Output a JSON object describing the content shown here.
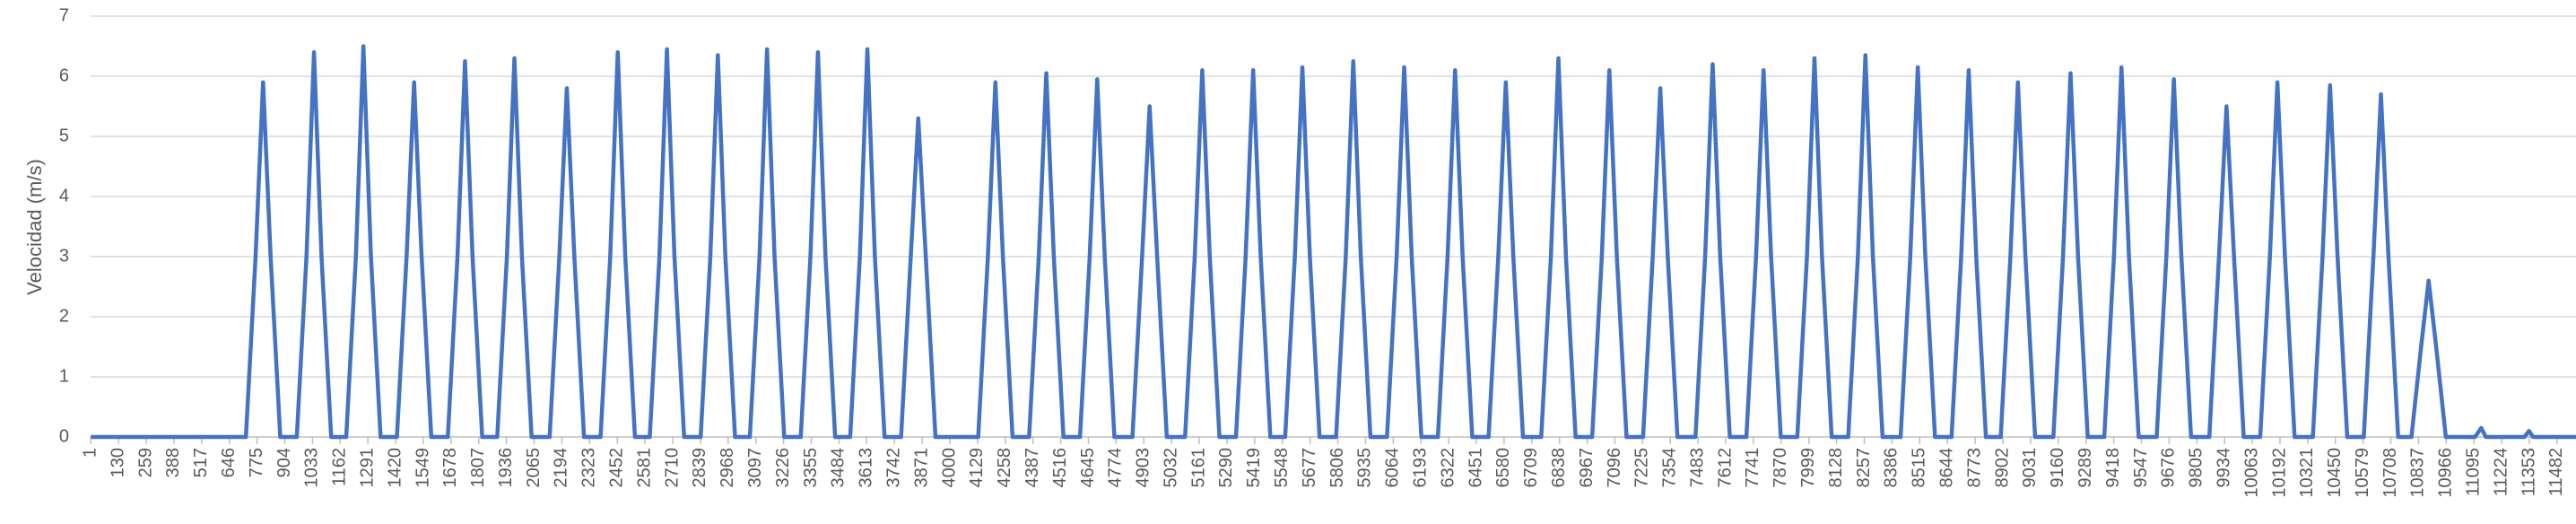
{
  "chart_data": {
    "type": "line",
    "y_label": "Velocidad (m/s)",
    "xlim": [
      0,
      11570
    ],
    "ylim": [
      0,
      7
    ],
    "yticks": [
      0,
      1,
      2,
      3,
      4,
      5,
      6,
      7
    ],
    "xticks": [
      1,
      130,
      259,
      388,
      517,
      646,
      775,
      904,
      1033,
      1162,
      1291,
      1420,
      1549,
      1678,
      1807,
      1936,
      2065,
      2194,
      2323,
      2452,
      2581,
      2710,
      2839,
      2968,
      3097,
      3226,
      3355,
      3484,
      3613,
      3742,
      3871,
      4000,
      4129,
      4258,
      4387,
      4516,
      4645,
      4774,
      4903,
      5032,
      5161,
      5290,
      5419,
      5548,
      5677,
      5806,
      5935,
      6064,
      6193,
      6322,
      6451,
      6580,
      6709,
      6838,
      6967,
      7096,
      7225,
      7354,
      7483,
      7612,
      7741,
      7870,
      7999,
      8128,
      8257,
      8386,
      8515,
      8644,
      8773,
      8902,
      9031,
      9160,
      9289,
      9418,
      9547,
      9676,
      9805,
      9934,
      10063,
      10192,
      10321,
      10450,
      10579,
      10708,
      10837,
      10966,
      11095,
      11224,
      11353,
      11482
    ],
    "grid": true,
    "series": [
      {
        "color": "#4472c4",
        "x": [
          1,
          723,
          768,
          803,
          838,
          883,
          960,
          1005,
          1040,
          1075,
          1120,
          1190,
          1235,
          1270,
          1305,
          1350,
          1426,
          1471,
          1506,
          1541,
          1586,
          1663,
          1708,
          1743,
          1778,
          1823,
          1893,
          1938,
          1973,
          2008,
          2053,
          2137,
          2182,
          2217,
          2252,
          2297,
          2374,
          2419,
          2454,
          2489,
          2534,
          2603,
          2648,
          2683,
          2718,
          2763,
          2840,
          2885,
          2920,
          2955,
          3000,
          3069,
          3114,
          3149,
          3184,
          3229,
          3306,
          3351,
          3386,
          3421,
          3466,
          3536,
          3581,
          3616,
          3651,
          3696,
          3773,
          3818,
          3853,
          3888,
          3933,
          4132,
          4177,
          4212,
          4247,
          4292,
          4369,
          4414,
          4449,
          4484,
          4529,
          4606,
          4651,
          4686,
          4721,
          4766,
          4850,
          4895,
          4930,
          4965,
          5010,
          5095,
          5140,
          5175,
          5210,
          5255,
          5332,
          5377,
          5412,
          5447,
          5492,
          5561,
          5606,
          5641,
          5676,
          5721,
          5798,
          5843,
          5878,
          5913,
          5958,
          6035,
          6080,
          6115,
          6150,
          6195,
          6272,
          6317,
          6352,
          6387,
          6432,
          6508,
          6553,
          6588,
          6623,
          6668,
          6753,
          6798,
          6833,
          6868,
          6913,
          6990,
          7035,
          7070,
          7105,
          7150,
          7227,
          7272,
          7307,
          7342,
          7387,
          7471,
          7516,
          7551,
          7586,
          7631,
          7708,
          7753,
          7788,
          7823,
          7868,
          7945,
          7990,
          8025,
          8060,
          8105,
          8182,
          8227,
          8262,
          8297,
          8342,
          8426,
          8471,
          8506,
          8541,
          8586,
          8663,
          8708,
          8743,
          8778,
          8823,
          8892,
          8937,
          8972,
          9007,
          9052,
          9137,
          9182,
          9217,
          9252,
          9297,
          9374,
          9419,
          9454,
          9489,
          9534,
          9618,
          9663,
          9698,
          9733,
          9778,
          9863,
          9908,
          9943,
          9978,
          10023,
          10100,
          10145,
          10180,
          10215,
          10260,
          10345,
          10390,
          10425,
          10460,
          10505,
          10582,
          10627,
          10662,
          10697,
          10742,
          10804,
          10849,
          10884,
          10919,
          10964,
          11100,
          11129,
          11150,
          11330,
          11351,
          11370,
          11570
        ],
        "values": [
          0,
          0,
          3,
          5.9,
          3,
          0,
          0,
          3,
          6.4,
          3,
          0,
          0,
          3,
          6.5,
          3,
          0,
          0,
          3,
          5.9,
          3,
          0,
          0,
          3,
          6.25,
          3,
          0,
          0,
          3,
          6.3,
          3,
          0,
          0,
          3,
          5.8,
          3,
          0,
          0,
          3,
          6.4,
          3,
          0,
          0,
          3,
          6.45,
          3,
          0,
          0,
          3,
          6.35,
          3,
          0,
          0,
          3,
          6.45,
          3,
          0,
          0,
          3,
          6.4,
          3,
          0,
          0,
          3,
          6.45,
          3,
          0,
          0,
          3,
          5.3,
          3,
          0,
          0,
          3,
          5.9,
          3,
          0,
          0,
          3,
          6.05,
          3,
          0,
          0,
          3,
          5.95,
          3,
          0,
          0,
          3,
          5.5,
          3,
          0,
          0,
          3,
          6.1,
          3,
          0,
          0,
          3,
          6.1,
          3,
          0,
          0,
          3,
          6.15,
          3,
          0,
          0,
          3,
          6.25,
          3,
          0,
          0,
          3,
          6.15,
          3,
          0,
          0,
          3,
          6.1,
          3,
          0,
          0,
          3,
          5.9,
          3,
          0,
          0,
          3,
          6.3,
          3,
          0,
          0,
          3,
          6.1,
          3,
          0,
          0,
          3,
          5.8,
          3,
          0,
          0,
          3,
          6.2,
          3,
          0,
          0,
          3,
          6.1,
          3,
          0,
          0,
          3,
          6.3,
          3,
          0,
          0,
          3,
          6.35,
          3,
          0,
          0,
          3,
          6.15,
          3,
          0,
          0,
          3,
          6.1,
          3,
          0,
          0,
          3,
          5.9,
          3,
          0,
          0,
          3,
          6.05,
          3,
          0,
          0,
          3,
          6.15,
          3,
          0,
          0,
          3,
          5.95,
          3,
          0,
          0,
          3,
          5.5,
          3,
          0,
          0,
          3,
          5.9,
          3,
          0,
          0,
          3,
          5.85,
          3,
          0,
          0,
          3,
          5.7,
          3,
          0,
          0,
          1.5,
          2.6,
          1.5,
          0,
          0,
          0.15,
          0,
          0,
          0.1,
          0,
          0
        ]
      }
    ]
  }
}
